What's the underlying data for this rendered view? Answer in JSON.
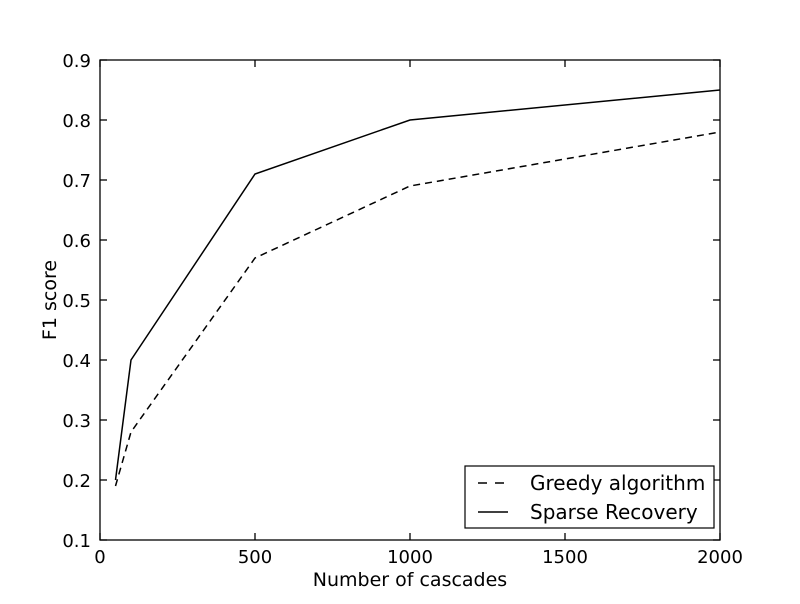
{
  "figure": {
    "background_color": "#ffffff",
    "axis_color": "#000000",
    "title": ""
  },
  "chart_data": {
    "type": "line",
    "title": "",
    "xlabel": "Number of cascades",
    "ylabel": "F1 score",
    "xlim": [
      0,
      2000
    ],
    "ylim": [
      0.1,
      0.9
    ],
    "xticks": [
      0,
      500,
      1000,
      1500,
      2000
    ],
    "yticks": [
      0.1,
      0.2,
      0.3,
      0.4,
      0.5,
      0.6,
      0.7,
      0.8,
      0.9
    ],
    "grid": false,
    "tick_direction": "in",
    "legend": {
      "position": "lower right",
      "border_color": "#000000",
      "background_color": "#ffffff"
    },
    "x": [
      50,
      100,
      500,
      1000,
      2000
    ],
    "series": [
      {
        "name": "Greedy algorithm",
        "line_style": "dashed",
        "color": "#000000",
        "values": [
          0.19,
          0.28,
          0.57,
          0.69,
          0.78
        ]
      },
      {
        "name": "Sparse Recovery",
        "line_style": "solid",
        "color": "#000000",
        "values": [
          0.2,
          0.4,
          0.71,
          0.8,
          0.85
        ]
      }
    ]
  }
}
